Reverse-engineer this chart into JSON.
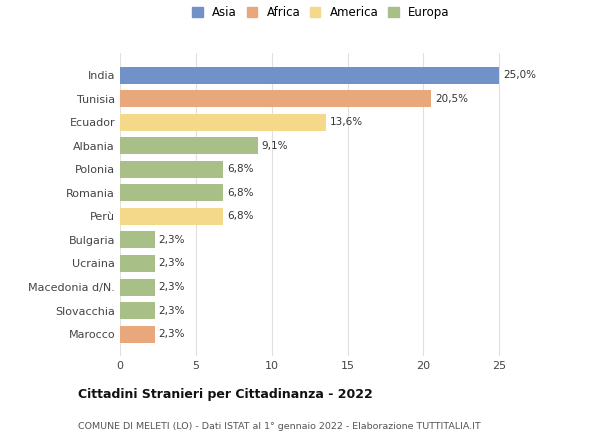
{
  "categories": [
    "India",
    "Tunisia",
    "Ecuador",
    "Albania",
    "Polonia",
    "Romania",
    "Perù",
    "Bulgaria",
    "Ucraina",
    "Macedonia d/N.",
    "Slovacchia",
    "Marocco"
  ],
  "values": [
    25.0,
    20.5,
    13.6,
    9.1,
    6.8,
    6.8,
    6.8,
    2.3,
    2.3,
    2.3,
    2.3,
    2.3
  ],
  "labels": [
    "25,0%",
    "20,5%",
    "13,6%",
    "9,1%",
    "6,8%",
    "6,8%",
    "6,8%",
    "2,3%",
    "2,3%",
    "2,3%",
    "2,3%",
    "2,3%"
  ],
  "colors": [
    "#7192c8",
    "#e8a87c",
    "#f5d98a",
    "#a8bf87",
    "#a8bf87",
    "#a8bf87",
    "#f5d98a",
    "#a8bf87",
    "#a8bf87",
    "#a8bf87",
    "#a8bf87",
    "#e8a87c"
  ],
  "continents": [
    "Asia",
    "Africa",
    "America",
    "Europa"
  ],
  "legend_colors": [
    "#7192c8",
    "#e8a87c",
    "#f5d98a",
    "#a8bf87"
  ],
  "title": "Cittadini Stranieri per Cittadinanza - 2022",
  "subtitle": "COMUNE DI MELETI (LO) - Dati ISTAT al 1° gennaio 2022 - Elaborazione TUTTITALIA.IT",
  "xlim": [
    0,
    26.5
  ],
  "xticks": [
    0,
    5,
    10,
    15,
    20,
    25
  ],
  "background_color": "#ffffff",
  "grid_color": "#e0e0e0"
}
